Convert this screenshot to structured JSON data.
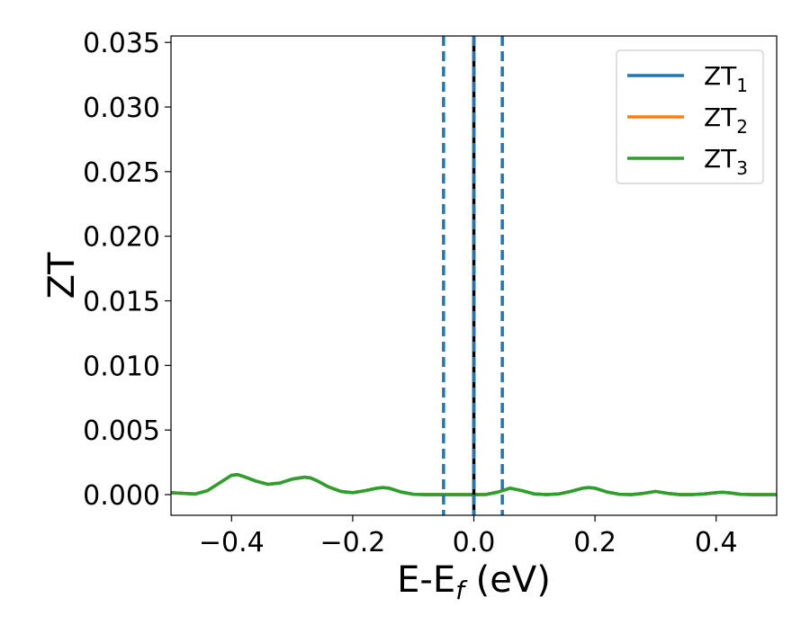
{
  "chart_data": {
    "type": "line",
    "title": "",
    "xlabel": "E-E",
    "xlabel_sub": "f",
    "xlabel_unit": " (eV)",
    "ylabel": "ZT",
    "xlim": [
      -0.5,
      0.5
    ],
    "ylim": [
      -0.0016,
      0.0355
    ],
    "grid": false,
    "legend_position": "top-right",
    "x_ticks": [
      -0.4,
      -0.2,
      0.0,
      0.2,
      0.4
    ],
    "x_tick_labels": [
      "−0.4",
      "−0.2",
      "0.0",
      "0.2",
      "0.4"
    ],
    "y_ticks": [
      0.0,
      0.005,
      0.01,
      0.015,
      0.02,
      0.025,
      0.03,
      0.035
    ],
    "y_tick_labels": [
      "0.000",
      "0.005",
      "0.010",
      "0.015",
      "0.020",
      "0.025",
      "0.030",
      "0.035"
    ],
    "x": [
      -0.5,
      -0.48,
      -0.46,
      -0.44,
      -0.42,
      -0.4,
      -0.39,
      -0.38,
      -0.36,
      -0.34,
      -0.32,
      -0.3,
      -0.28,
      -0.27,
      -0.26,
      -0.24,
      -0.22,
      -0.2,
      -0.18,
      -0.16,
      -0.15,
      -0.14,
      -0.12,
      -0.1,
      -0.08,
      -0.06,
      -0.04,
      -0.02,
      0.0,
      0.02,
      0.04,
      0.06,
      0.08,
      0.1,
      0.12,
      0.14,
      0.16,
      0.18,
      0.19,
      0.2,
      0.22,
      0.24,
      0.26,
      0.28,
      0.3,
      0.32,
      0.34,
      0.36,
      0.38,
      0.4,
      0.41,
      0.42,
      0.44,
      0.46,
      0.48,
      0.5
    ],
    "series": [
      {
        "name": "ZT",
        "name_sub": "1",
        "color": "#1f77b4",
        "values": [
          0.00015,
          0.0001,
          5e-05,
          0.0003,
          0.0009,
          0.0015,
          0.00155,
          0.0014,
          0.00105,
          0.0008,
          0.0009,
          0.0012,
          0.00135,
          0.0013,
          0.0011,
          0.0006,
          0.00025,
          0.00015,
          0.0003,
          0.0005,
          0.00055,
          0.0005,
          0.0002,
          3e-05,
          0.0,
          0.0,
          0.0,
          0.0,
          0.0,
          1e-05,
          0.0002,
          0.0005,
          0.0003,
          5e-05,
          0.0,
          5e-05,
          0.00025,
          0.0005,
          0.00055,
          0.0005,
          0.0002,
          3e-05,
          0.0,
          0.0001,
          0.00025,
          0.0001,
          0.0,
          0.0,
          5e-05,
          0.00015,
          0.00018,
          0.00015,
          3e-05,
          0.0,
          0.0,
          0.0
        ]
      },
      {
        "name": "ZT",
        "name_sub": "2",
        "color": "#ff7f0e",
        "values": [
          0.00015,
          0.0001,
          5e-05,
          0.0003,
          0.0009,
          0.0015,
          0.00155,
          0.0014,
          0.00105,
          0.0008,
          0.0009,
          0.0012,
          0.00135,
          0.0013,
          0.0011,
          0.0006,
          0.00025,
          0.00015,
          0.0003,
          0.0005,
          0.00055,
          0.0005,
          0.0002,
          3e-05,
          0.0,
          0.0,
          0.0,
          0.0,
          0.0,
          1e-05,
          0.0002,
          0.0005,
          0.0003,
          5e-05,
          0.0,
          5e-05,
          0.00025,
          0.0005,
          0.00055,
          0.0005,
          0.0002,
          3e-05,
          0.0,
          0.0001,
          0.00025,
          0.0001,
          0.0,
          0.0,
          5e-05,
          0.00015,
          0.00018,
          0.00015,
          3e-05,
          0.0,
          0.0,
          0.0
        ]
      },
      {
        "name": "ZT",
        "name_sub": "3",
        "color": "#2ca02c",
        "values": [
          0.00015,
          0.0001,
          5e-05,
          0.0003,
          0.0009,
          0.0015,
          0.00155,
          0.0014,
          0.00105,
          0.0008,
          0.0009,
          0.0012,
          0.00135,
          0.0013,
          0.0011,
          0.0006,
          0.00025,
          0.00015,
          0.0003,
          0.0005,
          0.00055,
          0.0005,
          0.0002,
          3e-05,
          0.0,
          0.0,
          0.0,
          0.0,
          0.0,
          1e-05,
          0.0002,
          0.0005,
          0.0003,
          5e-05,
          0.0,
          5e-05,
          0.00025,
          0.0005,
          0.00055,
          0.0005,
          0.0002,
          3e-05,
          0.0,
          0.0001,
          0.00025,
          0.0001,
          0.0,
          0.0,
          5e-05,
          0.00015,
          0.00018,
          0.00015,
          3e-05,
          0.0,
          0.0,
          0.0
        ]
      }
    ],
    "vlines": [
      {
        "x": -0.05,
        "style": "dashed",
        "color": "#1f77b4"
      },
      {
        "x": 0.0,
        "style": "solid",
        "color": "#000000"
      },
      {
        "x": 0.0,
        "style": "dashed",
        "color": "#1f77b4"
      },
      {
        "x": 0.047,
        "style": "dashed",
        "color": "#1f77b4"
      }
    ]
  }
}
